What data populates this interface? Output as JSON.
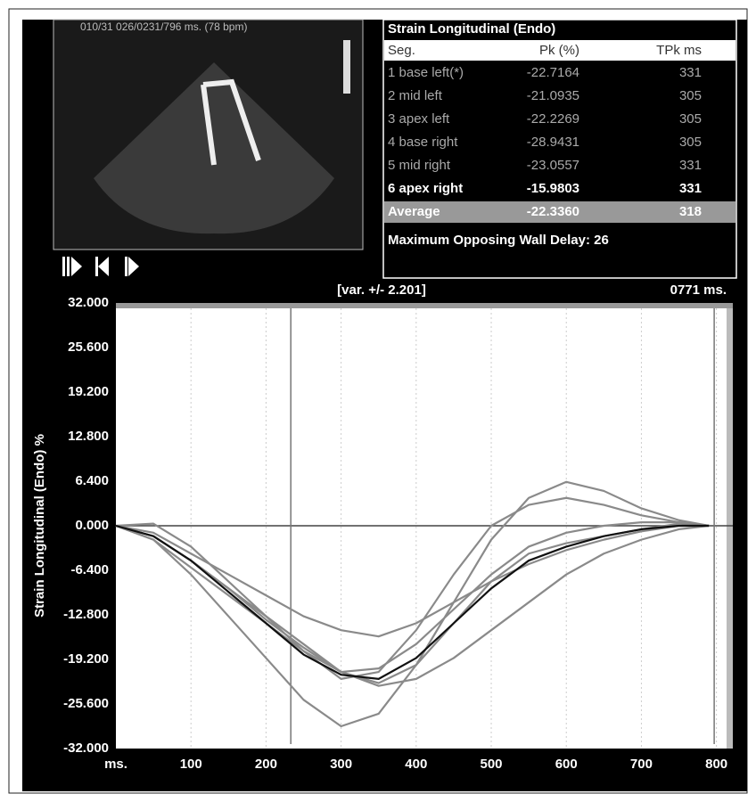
{
  "image_panel": {
    "header": "010/31 026/0231/796 ms. (78 bpm)"
  },
  "table": {
    "title": "Strain Longitudinal (Endo)",
    "columns": [
      "Seg.",
      "Pk (%)",
      "TPk ms"
    ],
    "rows": [
      [
        "1 base left(*)",
        "-22.7164",
        "331"
      ],
      [
        "2 mid left",
        "-21.0935",
        "305"
      ],
      [
        "3 apex left",
        "-22.2269",
        "305"
      ],
      [
        "4 base right",
        "-28.9431",
        "305"
      ],
      [
        "5 mid right",
        "-23.0557",
        "331"
      ],
      [
        "6 apex right",
        "-15.9803",
        "331"
      ],
      [
        "Average",
        "-22.3360",
        "318"
      ]
    ],
    "footer": "Maximum Opposing Wall Delay: 26"
  },
  "chart_data": {
    "type": "line",
    "ylabel": "Strain Longitudinal (Endo)  %",
    "annotations": [
      "[var. +/- 2.201]",
      "0771 ms."
    ],
    "x": [
      0,
      50,
      100,
      150,
      200,
      250,
      300,
      350,
      400,
      450,
      500,
      550,
      600,
      650,
      700,
      750,
      790
    ],
    "series": [
      {
        "name": "1 base left(*)",
        "color": "#8a8a8a",
        "values": [
          0,
          -1.5,
          -5,
          -9,
          -13.5,
          -17.5,
          -21,
          -22.6,
          -20,
          -14,
          -8,
          -4,
          -2.5,
          -1.5,
          -0.5,
          0.3,
          0
        ]
      },
      {
        "name": "2 mid left",
        "color": "#8a8a8a",
        "values": [
          0,
          -2,
          -6,
          -10,
          -14,
          -18,
          -21,
          -20.5,
          -17,
          -12,
          -7,
          -3,
          -1,
          0,
          0.5,
          0.5,
          0
        ]
      },
      {
        "name": "3 apex left",
        "color": "#8a8a8a",
        "values": [
          0,
          0.3,
          -3,
          -8,
          -13,
          -18,
          -22,
          -21,
          -15,
          -7,
          0,
          3,
          4,
          3,
          1.5,
          0.5,
          0
        ]
      },
      {
        "name": "4 base right",
        "color": "#8a8a8a",
        "values": [
          0,
          -2,
          -7,
          -13,
          -19,
          -25,
          -28.8,
          -27,
          -20,
          -11,
          -2,
          4,
          6.3,
          5,
          2.5,
          0.8,
          0
        ]
      },
      {
        "name": "5 mid right",
        "color": "#8a8a8a",
        "values": [
          0,
          -1.5,
          -5,
          -9,
          -13,
          -17,
          -21,
          -23,
          -22,
          -19,
          -15,
          -11,
          -7,
          -4,
          -2,
          -0.5,
          0
        ]
      },
      {
        "name": "6 apex right",
        "color": "#8a8a8a",
        "values": [
          0,
          -1,
          -4,
          -7,
          -10,
          -13,
          -15,
          -15.9,
          -14,
          -11,
          -8,
          -5.5,
          -3.5,
          -2,
          -0.8,
          0,
          0
        ]
      },
      {
        "name": "Average",
        "color": "#111111",
        "values": [
          0,
          -1.5,
          -5,
          -9.5,
          -14,
          -18.5,
          -21.4,
          -22,
          -19,
          -14,
          -9,
          -5,
          -3,
          -1.5,
          -0.5,
          0,
          0
        ]
      }
    ],
    "cursor_lines": [
      233,
      797
    ],
    "xlim": [
      0,
      823
    ],
    "ylim": [
      -32,
      32
    ],
    "xticks": [
      {
        "value": 0,
        "label": "ms."
      },
      100,
      200,
      300,
      400,
      500,
      600,
      700,
      800
    ],
    "yticks": [
      {
        "value": 32,
        "label": "32.000"
      },
      {
        "value": 25.6,
        "label": "25.600"
      },
      {
        "value": 19.2,
        "label": "19.200"
      },
      {
        "value": 12.8,
        "label": "12.800"
      },
      {
        "value": 6.4,
        "label": "6.400"
      },
      {
        "value": 0,
        "label": "0.000"
      },
      {
        "value": -6.4,
        "label": "-6.400"
      },
      {
        "value": -12.8,
        "label": "-12.800"
      },
      {
        "value": -19.2,
        "label": "-19.200"
      },
      {
        "value": -25.6,
        "label": "-25.600"
      },
      {
        "value": -32,
        "label": "-32.000"
      }
    ],
    "grid": true
  }
}
